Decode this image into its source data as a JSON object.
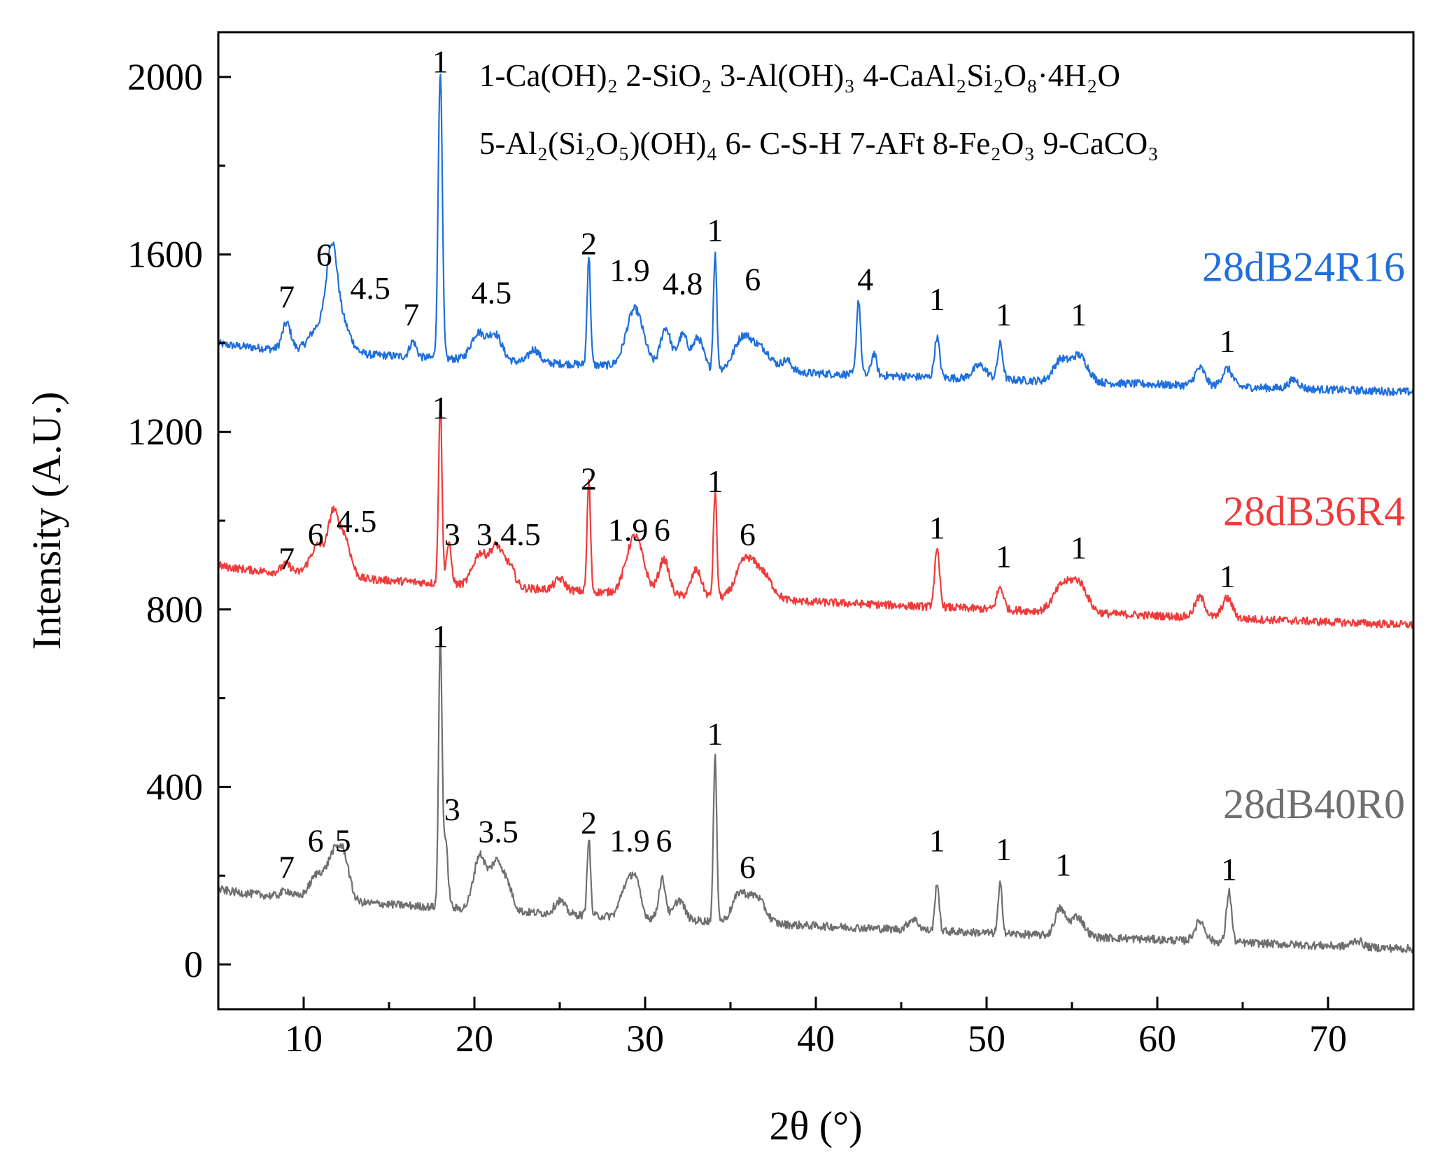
{
  "chart_data": {
    "type": "line",
    "title": "",
    "xlabel": "2θ (°)",
    "ylabel": "Intensity (A.U.)",
    "xlim": [
      5,
      75
    ],
    "ylim": [
      -100,
      2200
    ],
    "xticks": [
      10,
      20,
      30,
      40,
      50,
      60,
      70
    ],
    "yticks": [
      0,
      400,
      800,
      1200,
      1600,
      2000
    ],
    "grid": false,
    "legend_position": "top-right",
    "legend_text": [
      "1-Ca(OH)₂  2-SiO₂  3-Al(OH)₃  4-CaAl₂Si₂O₈·4H₂O",
      "5-Al₂(Si₂O₅)(OH)₄  6- C-S-H  7-AFt  8-Fe₂O₃  9-CaCO₃"
    ],
    "series": [
      {
        "name": "28dB24R16",
        "color": "#1f6fdc",
        "baseline_start": 1400,
        "baseline_end": 1290,
        "noise": 9,
        "peaks": [
          {
            "x": 9.0,
            "h": 60,
            "w": 0.25
          },
          {
            "x": 11.0,
            "h": 60,
            "w": 0.6
          },
          {
            "x": 11.65,
            "h": 180,
            "w": 0.3
          },
          {
            "x": 12.2,
            "h": 70,
            "w": 0.5
          },
          {
            "x": 16.4,
            "h": 35,
            "w": 0.2
          },
          {
            "x": 18.0,
            "h": 650,
            "w": 0.12
          },
          {
            "x": 20.2,
            "h": 60,
            "w": 0.4
          },
          {
            "x": 21.2,
            "h": 60,
            "w": 0.4
          },
          {
            "x": 23.5,
            "h": 30,
            "w": 0.3
          },
          {
            "x": 26.7,
            "h": 245,
            "w": 0.1
          },
          {
            "x": 29.4,
            "h": 130,
            "w": 0.5
          },
          {
            "x": 31.2,
            "h": 90,
            "w": 0.3
          },
          {
            "x": 32.2,
            "h": 75,
            "w": 0.3
          },
          {
            "x": 33.1,
            "h": 70,
            "w": 0.3
          },
          {
            "x": 34.1,
            "h": 260,
            "w": 0.1
          },
          {
            "x": 35.7,
            "h": 70,
            "w": 0.5
          },
          {
            "x": 36.8,
            "h": 50,
            "w": 0.6
          },
          {
            "x": 38.3,
            "h": 25,
            "w": 0.3
          },
          {
            "x": 42.5,
            "h": 170,
            "w": 0.12
          },
          {
            "x": 43.4,
            "h": 50,
            "w": 0.15
          },
          {
            "x": 47.1,
            "h": 90,
            "w": 0.15
          },
          {
            "x": 49.6,
            "h": 30,
            "w": 0.4
          },
          {
            "x": 50.8,
            "h": 80,
            "w": 0.15
          },
          {
            "x": 54.3,
            "h": 45,
            "w": 0.4
          },
          {
            "x": 55.4,
            "h": 60,
            "w": 0.5
          },
          {
            "x": 62.5,
            "h": 40,
            "w": 0.3
          },
          {
            "x": 64.1,
            "h": 40,
            "w": 0.3
          },
          {
            "x": 68.0,
            "h": 20,
            "w": 0.3
          }
        ],
        "annotations": [
          {
            "x": 9.0,
            "y": 1480,
            "text": "7"
          },
          {
            "x": 11.2,
            "y": 1575,
            "text": "6"
          },
          {
            "x": 13.9,
            "y": 1500,
            "text": "4.5"
          },
          {
            "x": 16.3,
            "y": 1440,
            "text": "7"
          },
          {
            "x": 18.0,
            "y": 2010,
            "text": "1"
          },
          {
            "x": 21.0,
            "y": 1490,
            "text": "4.5"
          },
          {
            "x": 26.7,
            "y": 1600,
            "text": "2"
          },
          {
            "x": 29.1,
            "y": 1540,
            "text": "1.9"
          },
          {
            "x": 32.2,
            "y": 1510,
            "text": "4.8"
          },
          {
            "x": 34.1,
            "y": 1630,
            "text": "1"
          },
          {
            "x": 36.3,
            "y": 1520,
            "text": "6"
          },
          {
            "x": 42.9,
            "y": 1520,
            "text": "4"
          },
          {
            "x": 47.1,
            "y": 1475,
            "text": "1"
          },
          {
            "x": 51.0,
            "y": 1440,
            "text": "1"
          },
          {
            "x": 55.4,
            "y": 1440,
            "text": "1"
          },
          {
            "x": 64.1,
            "y": 1380,
            "text": "1"
          }
        ],
        "label_y": 1540
      },
      {
        "name": "28dB36R4",
        "color": "#ef3b3b",
        "baseline_start": 900,
        "baseline_end": 765,
        "noise": 9,
        "peaks": [
          {
            "x": 9.0,
            "h": 20,
            "w": 0.3
          },
          {
            "x": 10.9,
            "h": 70,
            "w": 0.5
          },
          {
            "x": 11.7,
            "h": 100,
            "w": 0.25
          },
          {
            "x": 12.3,
            "h": 100,
            "w": 0.4
          },
          {
            "x": 18.0,
            "h": 410,
            "w": 0.1
          },
          {
            "x": 18.5,
            "h": 90,
            "w": 0.15
          },
          {
            "x": 20.3,
            "h": 70,
            "w": 0.4
          },
          {
            "x": 21.3,
            "h": 90,
            "w": 0.4
          },
          {
            "x": 22.1,
            "h": 40,
            "w": 0.3
          },
          {
            "x": 25.0,
            "h": 25,
            "w": 0.3
          },
          {
            "x": 26.7,
            "h": 250,
            "w": 0.1
          },
          {
            "x": 29.4,
            "h": 130,
            "w": 0.5
          },
          {
            "x": 31.1,
            "h": 80,
            "w": 0.3
          },
          {
            "x": 33.0,
            "h": 60,
            "w": 0.3
          },
          {
            "x": 34.1,
            "h": 240,
            "w": 0.1
          },
          {
            "x": 35.8,
            "h": 75,
            "w": 0.5
          },
          {
            "x": 36.8,
            "h": 60,
            "w": 0.6
          },
          {
            "x": 47.1,
            "h": 125,
            "w": 0.15
          },
          {
            "x": 50.8,
            "h": 50,
            "w": 0.2
          },
          {
            "x": 54.4,
            "h": 55,
            "w": 0.5
          },
          {
            "x": 55.4,
            "h": 65,
            "w": 0.5
          },
          {
            "x": 62.5,
            "h": 45,
            "w": 0.3
          },
          {
            "x": 64.1,
            "h": 45,
            "w": 0.3
          }
        ],
        "annotations": [
          {
            "x": 9.0,
            "y": 890,
            "text": "7"
          },
          {
            "x": 10.7,
            "y": 945,
            "text": "6"
          },
          {
            "x": 13.1,
            "y": 975,
            "text": "4.5"
          },
          {
            "x": 18.0,
            "y": 1230,
            "text": "1"
          },
          {
            "x": 18.7,
            "y": 945,
            "text": "3"
          },
          {
            "x": 22.0,
            "y": 945,
            "text": "3.4.5"
          },
          {
            "x": 26.7,
            "y": 1070,
            "text": "2"
          },
          {
            "x": 29.0,
            "y": 955,
            "text": "1.9"
          },
          {
            "x": 31.0,
            "y": 955,
            "text": "6"
          },
          {
            "x": 34.1,
            "y": 1065,
            "text": "1"
          },
          {
            "x": 36.0,
            "y": 945,
            "text": "6"
          },
          {
            "x": 47.1,
            "y": 960,
            "text": "1"
          },
          {
            "x": 51.0,
            "y": 895,
            "text": "1"
          },
          {
            "x": 55.4,
            "y": 915,
            "text": "1"
          },
          {
            "x": 64.1,
            "y": 850,
            "text": "1"
          }
        ],
        "label_y": 990
      },
      {
        "name": "28dB40R0",
        "color": "#6f6f6f",
        "baseline_start": 170,
        "baseline_end": 35,
        "noise": 9,
        "peaks": [
          {
            "x": 9.0,
            "h": 15,
            "w": 0.3
          },
          {
            "x": 10.9,
            "h": 60,
            "w": 0.5
          },
          {
            "x": 11.7,
            "h": 70,
            "w": 0.3
          },
          {
            "x": 12.3,
            "h": 110,
            "w": 0.35
          },
          {
            "x": 18.0,
            "h": 590,
            "w": 0.1
          },
          {
            "x": 18.3,
            "h": 150,
            "w": 0.15
          },
          {
            "x": 20.3,
            "h": 120,
            "w": 0.35
          },
          {
            "x": 21.3,
            "h": 110,
            "w": 0.4
          },
          {
            "x": 22.0,
            "h": 40,
            "w": 0.3
          },
          {
            "x": 25.0,
            "h": 30,
            "w": 0.3
          },
          {
            "x": 26.7,
            "h": 175,
            "w": 0.1
          },
          {
            "x": 28.8,
            "h": 60,
            "w": 0.3
          },
          {
            "x": 29.4,
            "h": 90,
            "w": 0.3
          },
          {
            "x": 31.0,
            "h": 90,
            "w": 0.2
          },
          {
            "x": 32.0,
            "h": 45,
            "w": 0.3
          },
          {
            "x": 34.1,
            "h": 370,
            "w": 0.1
          },
          {
            "x": 35.5,
            "h": 60,
            "w": 0.4
          },
          {
            "x": 36.5,
            "h": 60,
            "w": 0.5
          },
          {
            "x": 45.7,
            "h": 25,
            "w": 0.3
          },
          {
            "x": 47.1,
            "h": 110,
            "w": 0.12
          },
          {
            "x": 50.8,
            "h": 110,
            "w": 0.12
          },
          {
            "x": 54.3,
            "h": 60,
            "w": 0.3
          },
          {
            "x": 55.3,
            "h": 45,
            "w": 0.4
          },
          {
            "x": 62.5,
            "h": 45,
            "w": 0.3
          },
          {
            "x": 64.2,
            "h": 115,
            "w": 0.15
          },
          {
            "x": 71.7,
            "h": 15,
            "w": 0.3
          }
        ],
        "annotations": [
          {
            "x": 9.0,
            "y": 195,
            "text": "7"
          },
          {
            "x": 10.7,
            "y": 255,
            "text": "6"
          },
          {
            "x": 12.3,
            "y": 255,
            "text": "5"
          },
          {
            "x": 18.0,
            "y": 715,
            "text": "1"
          },
          {
            "x": 18.7,
            "y": 325,
            "text": "3"
          },
          {
            "x": 21.4,
            "y": 275,
            "text": "3.5"
          },
          {
            "x": 26.7,
            "y": 295,
            "text": "2"
          },
          {
            "x": 29.1,
            "y": 255,
            "text": "1.9"
          },
          {
            "x": 31.1,
            "y": 255,
            "text": "6"
          },
          {
            "x": 34.1,
            "y": 495,
            "text": "1"
          },
          {
            "x": 36.0,
            "y": 195,
            "text": "6"
          },
          {
            "x": 47.1,
            "y": 255,
            "text": "1"
          },
          {
            "x": 51.0,
            "y": 235,
            "text": "1"
          },
          {
            "x": 54.5,
            "y": 200,
            "text": "1"
          },
          {
            "x": 64.2,
            "y": 190,
            "text": "1"
          }
        ],
        "label_y": 330
      }
    ]
  }
}
